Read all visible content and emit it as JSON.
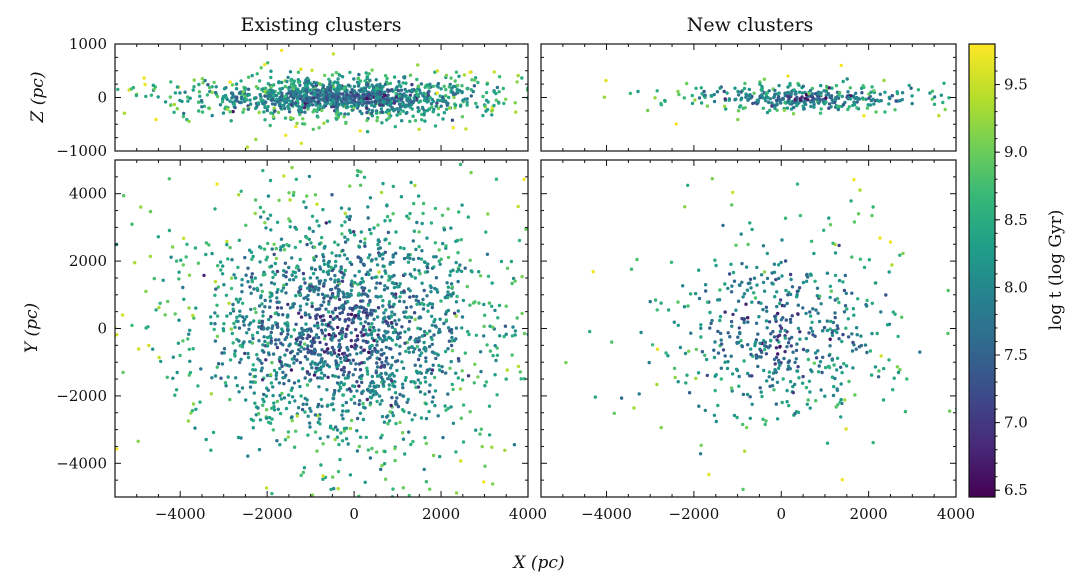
{
  "figure": {
    "titles": [
      "Existing clusters",
      "New clusters"
    ],
    "xlabel": "X (pc)",
    "ylabel_top": "Z (pc)",
    "ylabel_bottom": "Y (pc)",
    "colorbar_label": "log t (log Gyr)",
    "colormap": "viridis"
  },
  "chart_data": [
    {
      "type": "scatter",
      "title": "Existing clusters",
      "xlabel": "",
      "ylabel": "Z (pc)",
      "xlim": [
        -5500,
        4000
      ],
      "ylim": [
        -1000,
        1000
      ],
      "xticks": [
        -4000,
        -2000,
        0,
        2000,
        4000
      ],
      "yticks": [
        -1000,
        0,
        1000
      ],
      "distribution": {
        "x_center": -200,
        "x_sd": 1600,
        "y_center": 0,
        "y_sd": 170,
        "approx_points": 1300
      }
    },
    {
      "type": "scatter",
      "title": "New clusters",
      "xlabel": "",
      "ylabel": "",
      "xlim": [
        -5500,
        4000
      ],
      "ylim": [
        -1000,
        1000
      ],
      "xticks": [
        -4000,
        -2000,
        0,
        2000,
        4000
      ],
      "yticks": [],
      "distribution": {
        "x_center": 500,
        "x_sd": 1300,
        "y_center": 0,
        "y_sd": 110,
        "approx_points": 380
      }
    },
    {
      "type": "scatter",
      "title": "",
      "xlabel": "X (pc)",
      "ylabel": "Y (pc)",
      "xlim": [
        -5500,
        4000
      ],
      "ylim": [
        -5000,
        5000
      ],
      "xticks": [
        -4000,
        -2000,
        0,
        2000,
        4000
      ],
      "yticks": [
        -4000,
        -2000,
        0,
        2000,
        4000
      ],
      "distribution": {
        "x_center": -200,
        "x_sd": 1700,
        "y_center": 0,
        "y_sd": 1700,
        "approx_points": 2000
      }
    },
    {
      "type": "scatter",
      "title": "",
      "xlabel": "X (pc)",
      "ylabel": "",
      "xlim": [
        -5500,
        4000
      ],
      "ylim": [
        -5000,
        5000
      ],
      "xticks": [
        -4000,
        -2000,
        0,
        2000,
        4000
      ],
      "yticks": [],
      "distribution": {
        "x_center": 0,
        "x_sd": 1300,
        "y_center": 0,
        "y_sd": 1300,
        "approx_points": 580
      }
    }
  ],
  "colorbar": {
    "min": 6.45,
    "max": 9.8,
    "ticks": [
      "6.5",
      "7.0",
      "7.5",
      "8.0",
      "8.5",
      "9.0",
      "9.5"
    ],
    "label": "log t (log Gyr)"
  },
  "colors": {
    "viridis": [
      "#440154",
      "#482878",
      "#3e4989",
      "#31688e",
      "#26828e",
      "#1f9e89",
      "#35b779",
      "#6ece58",
      "#b5de2b",
      "#fde725"
    ]
  }
}
